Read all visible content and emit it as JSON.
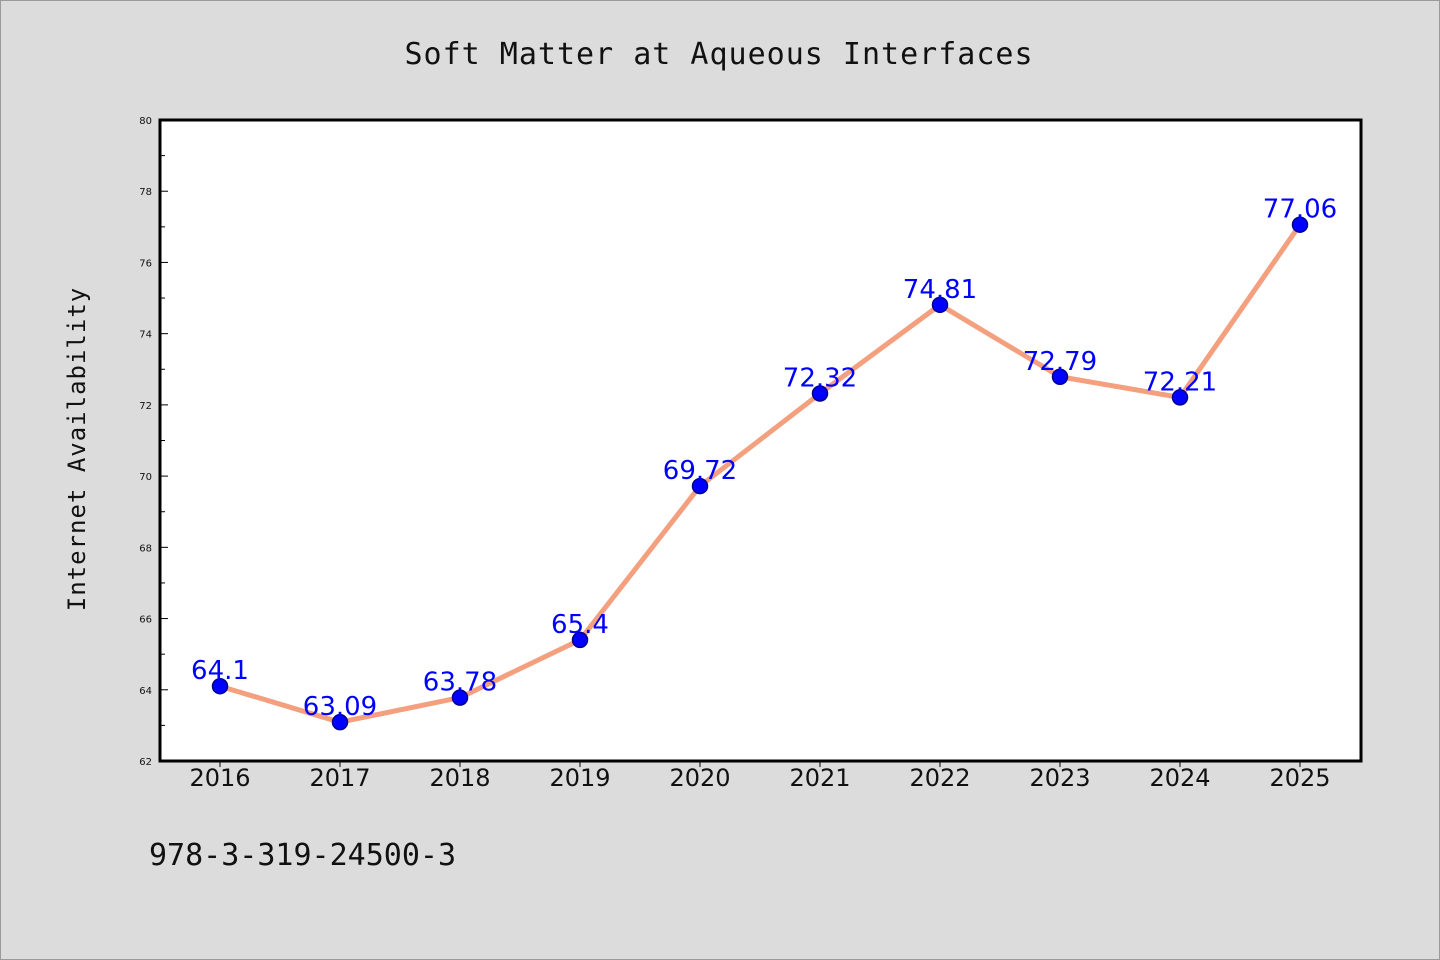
{
  "chart_data": {
    "type": "line",
    "title": "Soft Matter at Aqueous Interfaces",
    "xlabel": "",
    "ylabel": "Internet Availability",
    "categories": [
      "2016",
      "2017",
      "2018",
      "2019",
      "2020",
      "2021",
      "2022",
      "2023",
      "2024",
      "2025"
    ],
    "series": [
      {
        "values": [
          64.1,
          63.09,
          63.78,
          65.4,
          69.72,
          72.32,
          74.81,
          72.79,
          72.21,
          77.06
        ],
        "labels": [
          "64.1",
          "63.09",
          "63.78",
          "65.4",
          "69.72",
          "72.32",
          "74.81",
          "72.79",
          "72.21",
          "77.06"
        ]
      }
    ],
    "ylim": [
      62,
      80
    ],
    "yticks": [
      "62",
      "64",
      "66",
      "68",
      "70",
      "72",
      "74",
      "76",
      "78",
      "80"
    ],
    "grid": false,
    "legend": "none"
  },
  "footnote": "978-3-319-24500-3",
  "colors": {
    "line": "#f4a07e",
    "marker": "#0000ff",
    "marker_edge": "#00008b",
    "data_label": "#0000ff",
    "background": "#dcdcdc",
    "plot_background": "#ffffff"
  }
}
